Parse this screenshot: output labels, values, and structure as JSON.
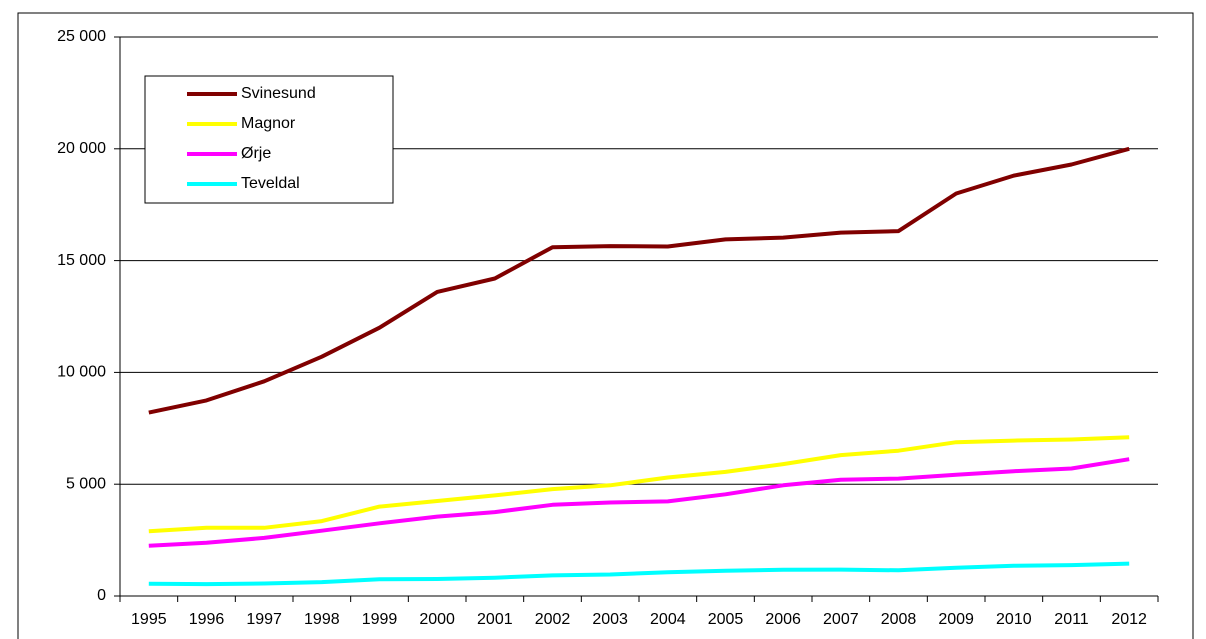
{
  "chart_data": {
    "type": "line",
    "categories": [
      "1995",
      "1996",
      "1997",
      "1998",
      "1999",
      "2000",
      "2001",
      "2002",
      "2003",
      "2004",
      "2005",
      "2006",
      "2007",
      "2008",
      "2009",
      "2010",
      "2011",
      "2012"
    ],
    "series": [
      {
        "name": "Svinesund",
        "color": "#800000",
        "values": [
          8200,
          8750,
          9600,
          10700,
          12000,
          13600,
          14200,
          15600,
          15650,
          15630,
          15950,
          16030,
          16250,
          16320,
          18000,
          18800,
          19300,
          20000
        ]
      },
      {
        "name": "Magnor",
        "color": "#ffff00",
        "values": [
          2900,
          3050,
          3050,
          3350,
          4000,
          4250,
          4500,
          4780,
          4950,
          5300,
          5550,
          5900,
          6300,
          6500,
          6880,
          6950,
          7000,
          7100
        ]
      },
      {
        "name": "Ørje",
        "color": "#ff00ff",
        "values": [
          2250,
          2380,
          2600,
          2920,
          3250,
          3550,
          3750,
          4080,
          4180,
          4230,
          4550,
          4950,
          5200,
          5250,
          5420,
          5580,
          5700,
          6120
        ]
      },
      {
        "name": "Teveldal",
        "color": "#00ffff",
        "values": [
          550,
          530,
          560,
          620,
          750,
          760,
          820,
          920,
          960,
          1060,
          1130,
          1170,
          1180,
          1150,
          1260,
          1350,
          1380,
          1450
        ]
      }
    ],
    "ylim": [
      0,
      25000
    ],
    "yticks": [
      0,
      {
        "value": 5000,
        "label": "5 000"
      },
      {
        "value": 10000,
        "label": "10 000"
      },
      {
        "value": 15000,
        "label": "15 000"
      },
      {
        "value": 20000,
        "label": "20 000"
      },
      {
        "value": 25000,
        "label": "25 000"
      }
    ],
    "grid": true,
    "legend": "upper left"
  }
}
